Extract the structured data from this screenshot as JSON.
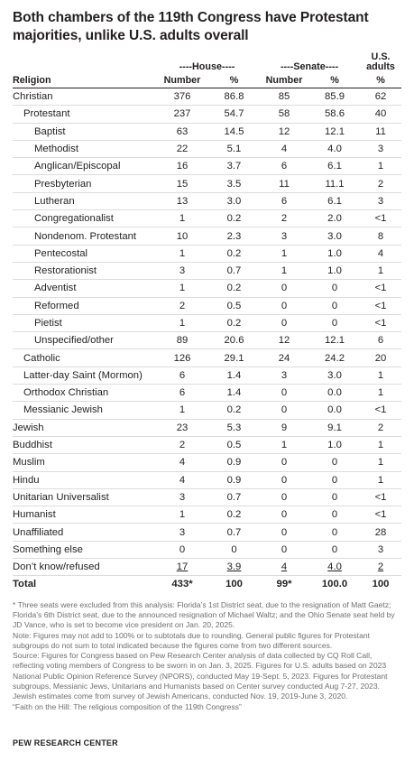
{
  "title": "Both chambers of the 119th Congress have Protestant majorities, unlike U.S. adults overall",
  "colors": {
    "text": "#231f20",
    "notes": "#6d6e71",
    "rule": "#dcdcdc"
  },
  "chart_data": {
    "type": "table",
    "group_headers": {
      "house": "----House----",
      "senate": "----Senate----",
      "us": "U.S. adults"
    },
    "columns": [
      "Religion",
      "Number",
      "%",
      "Number",
      "%",
      "%"
    ],
    "rows": [
      {
        "label": "Christian",
        "level": 1,
        "cells": [
          "376",
          "86.8",
          "85",
          "85.9",
          "62"
        ]
      },
      {
        "label": "Protestant",
        "level": 2,
        "cells": [
          "237",
          "54.7",
          "58",
          "58.6",
          "40"
        ]
      },
      {
        "label": "Baptist",
        "level": 3,
        "cells": [
          "63",
          "14.5",
          "12",
          "12.1",
          "11"
        ]
      },
      {
        "label": "Methodist",
        "level": 3,
        "cells": [
          "22",
          "5.1",
          "4",
          "4.0",
          "3"
        ]
      },
      {
        "label": "Anglican/Episcopal",
        "level": 3,
        "cells": [
          "16",
          "3.7",
          "6",
          "6.1",
          "1"
        ]
      },
      {
        "label": "Presbyterian",
        "level": 3,
        "cells": [
          "15",
          "3.5",
          "11",
          "11.1",
          "2"
        ]
      },
      {
        "label": "Lutheran",
        "level": 3,
        "cells": [
          "13",
          "3.0",
          "6",
          "6.1",
          "3"
        ]
      },
      {
        "label": "Congregationalist",
        "level": 3,
        "cells": [
          "1",
          "0.2",
          "2",
          "2.0",
          "<1"
        ]
      },
      {
        "label": "Nondenom. Protestant",
        "level": 3,
        "cells": [
          "10",
          "2.3",
          "3",
          "3.0",
          "8"
        ]
      },
      {
        "label": "Pentecostal",
        "level": 3,
        "cells": [
          "1",
          "0.2",
          "1",
          "1.0",
          "4"
        ]
      },
      {
        "label": "Restorationist",
        "level": 3,
        "cells": [
          "3",
          "0.7",
          "1",
          "1.0",
          "1"
        ]
      },
      {
        "label": "Adventist",
        "level": 3,
        "cells": [
          "1",
          "0.2",
          "0",
          "0",
          "<1"
        ]
      },
      {
        "label": "Reformed",
        "level": 3,
        "cells": [
          "2",
          "0.5",
          "0",
          "0",
          "<1"
        ]
      },
      {
        "label": "Pietist",
        "level": 3,
        "cells": [
          "1",
          "0.2",
          "0",
          "0",
          "<1"
        ]
      },
      {
        "label": "Unspecified/other",
        "level": 3,
        "cells": [
          "89",
          "20.6",
          "12",
          "12.1",
          "6"
        ]
      },
      {
        "label": "Catholic",
        "level": 2,
        "cells": [
          "126",
          "29.1",
          "24",
          "24.2",
          "20"
        ]
      },
      {
        "label": "Latter-day Saint (Mormon)",
        "level": 2,
        "cells": [
          "6",
          "1.4",
          "3",
          "3.0",
          "1"
        ]
      },
      {
        "label": "Orthodox Christian",
        "level": 2,
        "cells": [
          "6",
          "1.4",
          "0",
          "0.0",
          "1"
        ]
      },
      {
        "label": "Messianic Jewish",
        "level": 2,
        "cells": [
          "1",
          "0.2",
          "0",
          "0.0",
          "<1"
        ]
      },
      {
        "label": "Jewish",
        "level": 1,
        "cells": [
          "23",
          "5.3",
          "9",
          "9.1",
          "2"
        ]
      },
      {
        "label": "Buddhist",
        "level": 1,
        "cells": [
          "2",
          "0.5",
          "1",
          "1.0",
          "1"
        ]
      },
      {
        "label": "Muslim",
        "level": 1,
        "cells": [
          "4",
          "0.9",
          "0",
          "0",
          "1"
        ]
      },
      {
        "label": "Hindu",
        "level": 1,
        "cells": [
          "4",
          "0.9",
          "0",
          "0",
          "1"
        ]
      },
      {
        "label": "Unitarian Universalist",
        "level": 1,
        "cells": [
          "3",
          "0.7",
          "0",
          "0",
          "<1"
        ]
      },
      {
        "label": "Humanist",
        "level": 1,
        "cells": [
          "1",
          "0.2",
          "0",
          "0",
          "<1"
        ]
      },
      {
        "label": "Unaffiliated",
        "level": 1,
        "cells": [
          "3",
          "0.7",
          "0",
          "0",
          "28"
        ]
      },
      {
        "label": "Something else",
        "level": 1,
        "cells": [
          "0",
          "0",
          "0",
          "0",
          "3"
        ]
      },
      {
        "label": "Don’t know/refused",
        "level": 1,
        "underline": true,
        "cells": [
          "17",
          "3.9",
          "4",
          "4.0",
          "2"
        ]
      }
    ],
    "total": {
      "label": "Total",
      "cells": [
        "433*",
        "100",
        "99*",
        "100.0",
        "100"
      ]
    }
  },
  "notes": [
    "* Three seats were excluded from this analysis: Florida’s 1st District seat, due to the resignation of Matt Gaetz; Florida’s 6th District seat, due to the announced resignation of Michael Waltz; and the Ohio Senate seat held by JD Vance, who is set to become vice president on Jan. 20, 2025.",
    "Note: Figures may not add to 100% or to subtotals due to rounding. General public figures for Protestant subgroups do not sum to total indicated because the figures come from two different sources.",
    "Source: Figures for Congress based on Pew Research Center analysis of data collected by CQ Roll Call, reflecting voting members of Congress to be sworn in on Jan. 3, 2025. Figures for U.S. adults based on 2023 National Public Opinion Reference Survey (NPORS), conducted May 19-Sept. 5, 2023. Figures for Protestant subgroups, Messianic Jews, Unitarians and Humanists based on Center survey conducted Aug 7-27, 2023. Jewish estimates come from survey of Jewish Americans, conducted Nov. 19, 2019-June 3, 2020.",
    "“Faith on the Hill: The religious composition of the 119th Congress”"
  ],
  "footer": "PEW RESEARCH CENTER"
}
